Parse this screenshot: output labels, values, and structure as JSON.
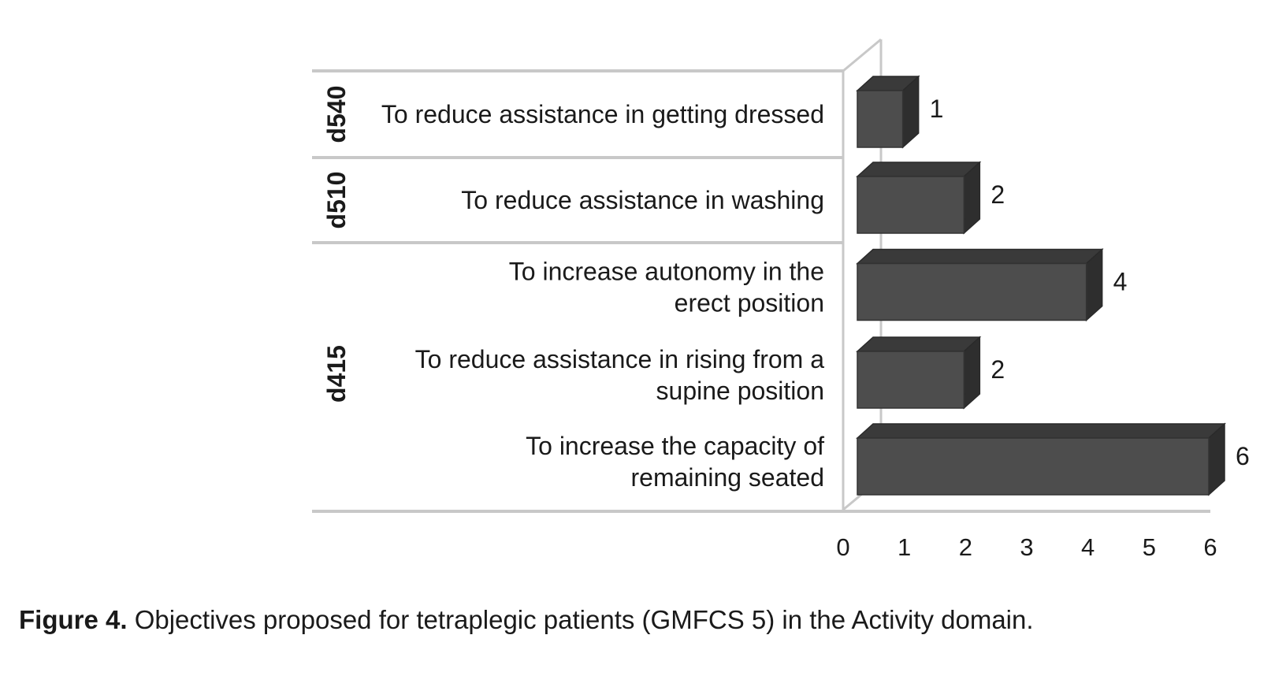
{
  "chart_data": {
    "type": "bar",
    "orientation": "horizontal",
    "style": "3d",
    "categories": [
      {
        "group": "d540",
        "lines": [
          "To reduce assistance in getting dressed"
        ]
      },
      {
        "group": "d510",
        "lines": [
          "To reduce assistance in washing"
        ]
      },
      {
        "group": "d415",
        "lines": [
          "To increase autonomy in the",
          "erect position"
        ]
      },
      {
        "group": "d415",
        "lines": [
          "To reduce assistance in rising from a",
          "supine position"
        ]
      },
      {
        "group": "d415",
        "lines": [
          "To increase the capacity of",
          "remaining seated"
        ]
      }
    ],
    "groups": [
      "d540",
      "d510",
      "d415"
    ],
    "values": [
      1,
      2,
      4,
      2,
      6
    ],
    "value_labels": [
      "1",
      "2",
      "4",
      "2",
      "6"
    ],
    "xlim": [
      0,
      6
    ],
    "xticks": [
      "0",
      "1",
      "2",
      "3",
      "4",
      "5",
      "6"
    ],
    "bar_color": "#4d4d4d",
    "grid": false,
    "legend": "none"
  },
  "caption": {
    "lead": "Figure 4.",
    "text": " Objectives proposed for tetraplegic patients (GMFCS 5) in the Activity domain."
  }
}
